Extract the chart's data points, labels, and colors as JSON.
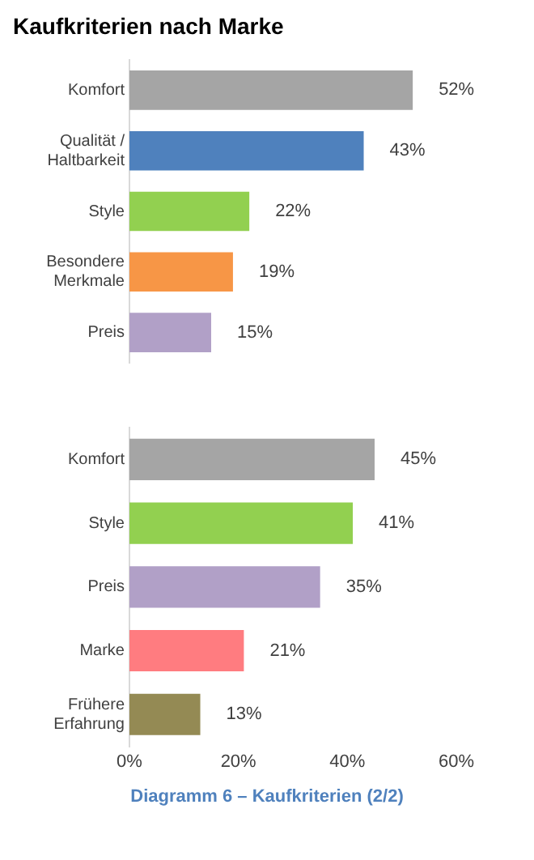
{
  "chart_data": [
    {
      "type": "bar",
      "orientation": "horizontal",
      "title": "Kaufkriterien nach Marke",
      "categories": [
        "Komfort",
        "Qualität / Haltbarkeit",
        "Style",
        "Besondere Merkmale",
        "Preis"
      ],
      "values": [
        52,
        43,
        22,
        19,
        15
      ],
      "value_labels": [
        "52%",
        "43%",
        "22%",
        "19%",
        "15%"
      ],
      "colors": [
        "#a5a5a5",
        "#4f81bd",
        "#92d050",
        "#f79646",
        "#b1a0c7"
      ],
      "xlim": [
        0,
        60
      ],
      "tick_labels": "y",
      "grid": false,
      "legend": false
    },
    {
      "type": "bar",
      "orientation": "horizontal",
      "categories": [
        "Komfort",
        "Style",
        "Preis",
        "Marke",
        "Frühere Erfahrung"
      ],
      "values": [
        45,
        41,
        35,
        21,
        13
      ],
      "value_labels": [
        "45%",
        "41%",
        "35%",
        "21%",
        "13%"
      ],
      "colors": [
        "#a5a5a5",
        "#92d050",
        "#b1a0c7",
        "#ff7c80",
        "#948a54"
      ],
      "xlim": [
        0,
        60
      ],
      "xticks": [
        {
          "value": 0,
          "label": "0%"
        },
        {
          "value": 20,
          "label": "20%"
        },
        {
          "value": 40,
          "label": "40%"
        },
        {
          "value": 60,
          "label": "60%"
        }
      ],
      "grid": false,
      "legend": false,
      "annotations": [
        "Diagramm 6 – Kaufkriterien (2/2)"
      ]
    }
  ]
}
